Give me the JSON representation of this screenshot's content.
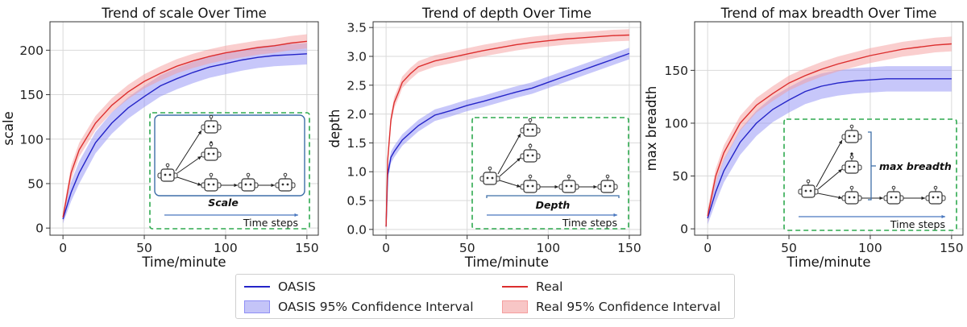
{
  "legend": {
    "oasis": "OASIS",
    "oasis_ci": "OASIS 95% Confidence Interval",
    "real": "Real",
    "real_ci": "Real 95% Confidence Interval"
  },
  "colors": {
    "oasis": "#2424c8",
    "oasis_band": "#8f8ff5",
    "real": "#dc2e2e",
    "real_band": "#f59e9e",
    "inset_border": "#2faa4f",
    "arrow": "#4a78bf"
  },
  "chart_data": [
    {
      "type": "line",
      "title": "Trend of scale Over Time",
      "xlabel": "Time/minute",
      "ylabel": "scale",
      "xlim": [
        -8,
        157
      ],
      "ylim": [
        -8,
        232
      ],
      "xticks": [
        0,
        50,
        100,
        150
      ],
      "yticks": [
        0,
        50,
        100,
        150,
        200
      ],
      "grid": true,
      "series": [
        {
          "name": "OASIS",
          "x": [
            0,
            5,
            10,
            20,
            30,
            40,
            50,
            60,
            70,
            80,
            90,
            100,
            110,
            120,
            130,
            140,
            150
          ],
          "y": [
            10,
            40,
            62,
            96,
            118,
            135,
            148,
            160,
            168,
            175,
            181,
            185,
            189,
            192,
            194,
            195,
            196
          ],
          "ci": [
            [
              5,
              15
            ],
            [
              30,
              52
            ],
            [
              50,
              75
            ],
            [
              84,
              108
            ],
            [
              106,
              130
            ],
            [
              123,
              147
            ],
            [
              136,
              160
            ],
            [
              148,
              172
            ],
            [
              156,
              180
            ],
            [
              163,
              187
            ],
            [
              169,
              193
            ],
            [
              173,
              197
            ],
            [
              177,
              201
            ],
            [
              180,
              204
            ],
            [
              182,
              206
            ],
            [
              183,
              207
            ],
            [
              184,
              208
            ]
          ]
        },
        {
          "name": "Real",
          "x": [
            0,
            5,
            10,
            20,
            30,
            40,
            50,
            60,
            70,
            80,
            90,
            100,
            110,
            120,
            130,
            140,
            150
          ],
          "y": [
            12,
            62,
            88,
            118,
            138,
            153,
            165,
            174,
            182,
            188,
            193,
            197,
            200,
            203,
            205,
            208,
            210
          ],
          "ci": [
            [
              7,
              17
            ],
            [
              54,
              70
            ],
            [
              80,
              96
            ],
            [
              110,
              126
            ],
            [
              130,
              146
            ],
            [
              145,
              161
            ],
            [
              157,
              173
            ],
            [
              166,
              182
            ],
            [
              174,
              190
            ],
            [
              180,
              196
            ],
            [
              185,
              201
            ],
            [
              189,
              205
            ],
            [
              192,
              208
            ],
            [
              195,
              211
            ],
            [
              197,
              213
            ],
            [
              200,
              216
            ],
            [
              202,
              218
            ]
          ]
        }
      ],
      "inset": {
        "label": "Scale",
        "arrow_label": "Time steps"
      }
    },
    {
      "type": "line",
      "title": "Trend of depth Over Time",
      "xlabel": "Time/minute",
      "ylabel": "depth",
      "xlim": [
        -8,
        157
      ],
      "ylim": [
        -0.1,
        3.6
      ],
      "xticks": [
        0,
        50,
        100,
        150
      ],
      "yticks": [
        0.0,
        0.5,
        1.0,
        1.5,
        2.0,
        2.5,
        3.0,
        3.5
      ],
      "grid": true,
      "series": [
        {
          "name": "OASIS",
          "x": [
            0,
            1,
            3,
            5,
            10,
            20,
            30,
            40,
            50,
            60,
            70,
            80,
            90,
            100,
            110,
            120,
            130,
            140,
            150
          ],
          "y": [
            0.05,
            0.95,
            1.25,
            1.35,
            1.55,
            1.8,
            1.98,
            2.06,
            2.15,
            2.22,
            2.3,
            2.38,
            2.45,
            2.55,
            2.65,
            2.75,
            2.85,
            2.95,
            3.05
          ],
          "ci": [
            [
              0.0,
              0.1
            ],
            [
              0.85,
              1.05
            ],
            [
              1.15,
              1.35
            ],
            [
              1.25,
              1.45
            ],
            [
              1.45,
              1.65
            ],
            [
              1.7,
              1.9
            ],
            [
              1.88,
              2.08
            ],
            [
              1.96,
              2.16
            ],
            [
              2.05,
              2.25
            ],
            [
              2.12,
              2.32
            ],
            [
              2.2,
              2.4
            ],
            [
              2.28,
              2.48
            ],
            [
              2.35,
              2.55
            ],
            [
              2.45,
              2.65
            ],
            [
              2.55,
              2.75
            ],
            [
              2.65,
              2.85
            ],
            [
              2.75,
              2.95
            ],
            [
              2.85,
              3.05
            ],
            [
              2.95,
              3.15
            ]
          ]
        },
        {
          "name": "Real",
          "x": [
            0,
            1,
            3,
            5,
            8,
            10,
            15,
            20,
            30,
            40,
            50,
            60,
            70,
            80,
            90,
            100,
            110,
            120,
            130,
            140,
            150
          ],
          "y": [
            0.05,
            1.2,
            1.9,
            2.2,
            2.4,
            2.55,
            2.7,
            2.82,
            2.92,
            2.98,
            3.04,
            3.1,
            3.15,
            3.2,
            3.24,
            3.27,
            3.3,
            3.32,
            3.34,
            3.36,
            3.37
          ],
          "ci": [
            [
              0.0,
              0.1
            ],
            [
              1.1,
              1.3
            ],
            [
              1.8,
              2.0
            ],
            [
              2.1,
              2.3
            ],
            [
              2.3,
              2.5
            ],
            [
              2.45,
              2.65
            ],
            [
              2.6,
              2.8
            ],
            [
              2.72,
              2.92
            ],
            [
              2.82,
              3.02
            ],
            [
              2.88,
              3.08
            ],
            [
              2.94,
              3.14
            ],
            [
              3.0,
              3.2
            ],
            [
              3.05,
              3.25
            ],
            [
              3.1,
              3.3
            ],
            [
              3.14,
              3.34
            ],
            [
              3.17,
              3.37
            ],
            [
              3.2,
              3.4
            ],
            [
              3.22,
              3.42
            ],
            [
              3.24,
              3.44
            ],
            [
              3.26,
              3.46
            ],
            [
              3.27,
              3.47
            ]
          ]
        }
      ],
      "inset": {
        "label": "Depth",
        "arrow_label": "Time steps"
      }
    },
    {
      "type": "line",
      "title": "Trend of max breadth Over Time",
      "xlabel": "Time/minute",
      "ylabel": "max breadth",
      "xlim": [
        -8,
        157
      ],
      "ylim": [
        -6,
        196
      ],
      "xticks": [
        0,
        50,
        100,
        150
      ],
      "yticks": [
        0,
        50,
        100,
        150
      ],
      "grid": true,
      "series": [
        {
          "name": "OASIS",
          "x": [
            0,
            5,
            10,
            20,
            30,
            40,
            50,
            60,
            70,
            80,
            90,
            100,
            110,
            120,
            130,
            140,
            150
          ],
          "y": [
            10,
            35,
            55,
            82,
            100,
            113,
            122,
            130,
            135,
            138,
            140,
            141,
            142,
            142,
            142,
            142,
            142
          ],
          "ci": [
            [
              4,
              16
            ],
            [
              25,
              45
            ],
            [
              44,
              66
            ],
            [
              70,
              94
            ],
            [
              88,
              112
            ],
            [
              101,
              125
            ],
            [
              110,
              134
            ],
            [
              118,
              142
            ],
            [
              123,
              147
            ],
            [
              126,
              150
            ],
            [
              128,
              152
            ],
            [
              129,
              153
            ],
            [
              130,
              154
            ],
            [
              130,
              154
            ],
            [
              130,
              154
            ],
            [
              130,
              154
            ],
            [
              130,
              154
            ]
          ]
        },
        {
          "name": "Real",
          "x": [
            0,
            5,
            10,
            20,
            30,
            40,
            50,
            60,
            70,
            80,
            90,
            100,
            110,
            120,
            130,
            140,
            150
          ],
          "y": [
            12,
            50,
            72,
            100,
            117,
            128,
            138,
            145,
            151,
            156,
            160,
            164,
            167,
            170,
            172,
            174,
            175
          ],
          "ci": [
            [
              6,
              18
            ],
            [
              43,
              57
            ],
            [
              65,
              79
            ],
            [
              93,
              107
            ],
            [
              110,
              124
            ],
            [
              121,
              135
            ],
            [
              131,
              145
            ],
            [
              138,
              152
            ],
            [
              144,
              158
            ],
            [
              149,
              163
            ],
            [
              153,
              167
            ],
            [
              157,
              171
            ],
            [
              160,
              174
            ],
            [
              163,
              177
            ],
            [
              165,
              179
            ],
            [
              167,
              181
            ],
            [
              168,
              182
            ]
          ]
        }
      ],
      "inset": {
        "label": "max breadth",
        "arrow_label": "Time steps"
      }
    }
  ]
}
